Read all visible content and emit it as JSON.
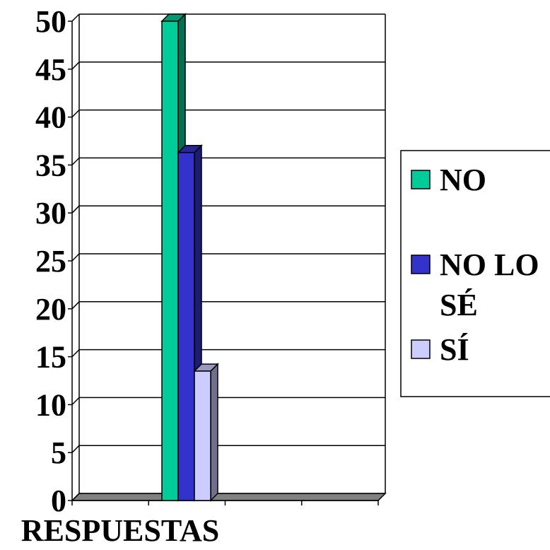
{
  "chart_data": {
    "type": "bar",
    "categories": [
      "RESPUESTAS"
    ],
    "series": [
      {
        "name": "NO",
        "values": [
          50
        ],
        "color": "#00cc99"
      },
      {
        "name": "NO LO SÉ",
        "values": [
          36.3
        ],
        "color": "#3333cc"
      },
      {
        "name": "SÍ",
        "values": [
          13.5
        ],
        "color": "#ccccff"
      }
    ],
    "y_ticks": [
      "0",
      "5",
      "10",
      "15",
      "20",
      "25",
      "30",
      "35",
      "40",
      "45",
      "50"
    ],
    "ylim": [
      0,
      50
    ],
    "grid": true,
    "legend_position": "right",
    "style": "3d-bar"
  }
}
